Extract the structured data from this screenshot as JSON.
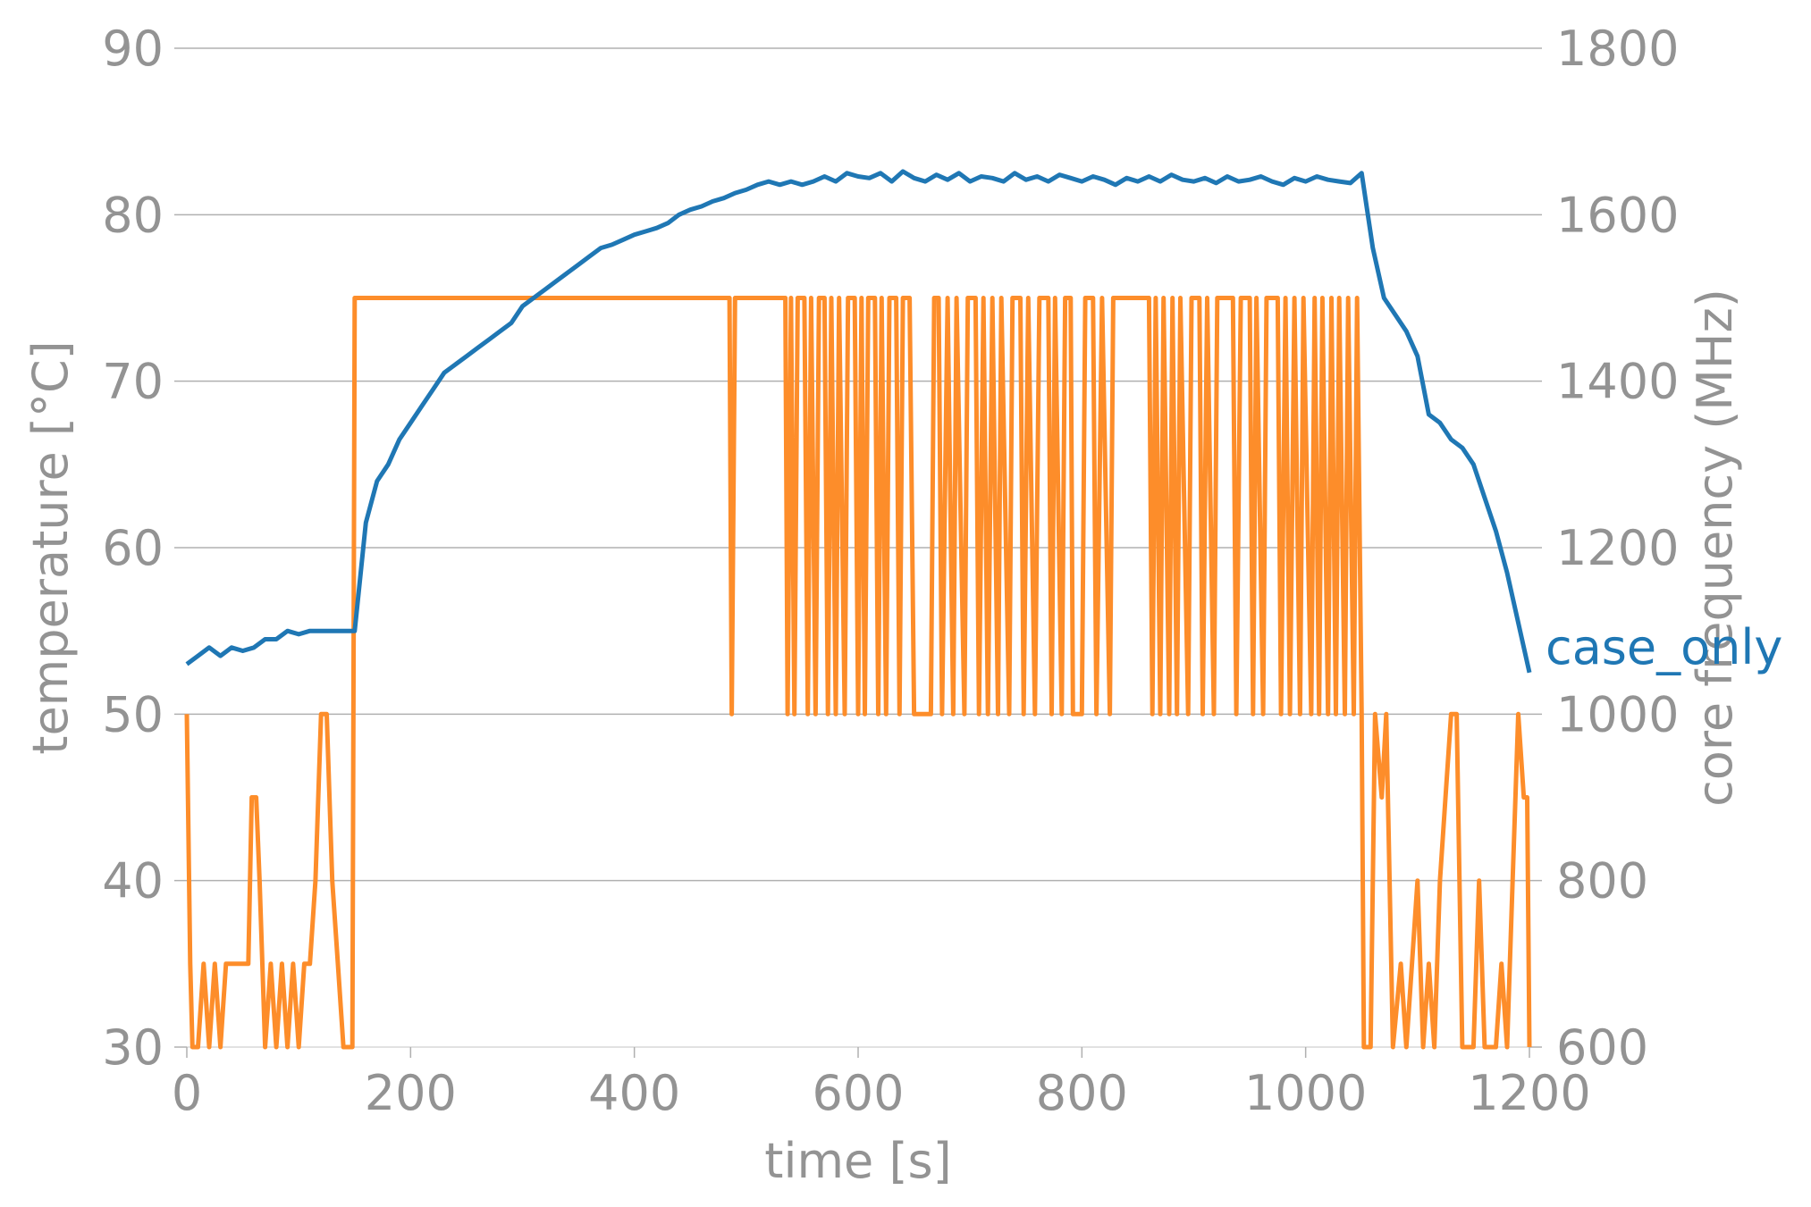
{
  "chart_data": {
    "type": "line",
    "xlabel": "time [s]",
    "ylabel": "temperature [°C]",
    "y2label": "core frequency (MHz)",
    "xlim": [
      0,
      1200
    ],
    "xticks": [
      0,
      200,
      400,
      600,
      800,
      1000,
      1200
    ],
    "ylim": [
      30,
      90
    ],
    "yticks": [
      30,
      40,
      50,
      60,
      70,
      80,
      90
    ],
    "y2lim": [
      600,
      1800
    ],
    "y2ticks": [
      600,
      800,
      1000,
      1200,
      1400,
      1600,
      1800
    ],
    "grid": true,
    "series": [
      {
        "name": "case_only",
        "color": "#1f77b4",
        "axis": "y",
        "x": [
          0,
          10,
          20,
          30,
          40,
          50,
          60,
          70,
          80,
          90,
          100,
          110,
          120,
          130,
          140,
          150,
          160,
          170,
          180,
          190,
          200,
          210,
          220,
          230,
          240,
          250,
          260,
          270,
          280,
          290,
          300,
          310,
          320,
          330,
          340,
          350,
          360,
          370,
          380,
          390,
          400,
          410,
          420,
          430,
          440,
          450,
          460,
          470,
          480,
          490,
          500,
          510,
          520,
          530,
          540,
          550,
          560,
          570,
          580,
          590,
          600,
          610,
          620,
          630,
          640,
          650,
          660,
          670,
          680,
          690,
          700,
          710,
          720,
          730,
          740,
          750,
          760,
          770,
          780,
          790,
          800,
          810,
          820,
          830,
          840,
          850,
          860,
          870,
          880,
          890,
          900,
          910,
          920,
          930,
          940,
          950,
          960,
          970,
          980,
          990,
          1000,
          1010,
          1020,
          1030,
          1040,
          1050,
          1060,
          1070,
          1080,
          1090,
          1100,
          1110,
          1120,
          1130,
          1140,
          1150,
          1160,
          1170,
          1180,
          1190,
          1200
        ],
        "values": [
          53,
          53.5,
          54,
          53.5,
          54,
          53.8,
          54,
          54.5,
          54.5,
          55,
          54.8,
          55,
          55,
          55,
          55,
          55,
          61.5,
          64,
          65,
          66.5,
          67.5,
          68.5,
          69.5,
          70.5,
          71,
          71.5,
          72,
          72.5,
          73,
          73.5,
          74.5,
          75,
          75.5,
          76,
          76.5,
          77,
          77.5,
          78,
          78.2,
          78.5,
          78.8,
          79,
          79.2,
          79.5,
          80,
          80.3,
          80.5,
          80.8,
          81,
          81.3,
          81.5,
          81.8,
          82,
          81.8,
          82,
          81.8,
          82,
          82.3,
          82,
          82.5,
          82.3,
          82.2,
          82.5,
          82,
          82.6,
          82.2,
          82,
          82.4,
          82.1,
          82.5,
          82,
          82.3,
          82.2,
          82,
          82.5,
          82.1,
          82.3,
          82,
          82.4,
          82.2,
          82,
          82.3,
          82.1,
          81.8,
          82.2,
          82,
          82.3,
          82,
          82.4,
          82.1,
          82,
          82.2,
          81.9,
          82.3,
          82,
          82.1,
          82.3,
          82,
          81.8,
          82.2,
          82,
          82.3,
          82.1,
          82,
          81.9,
          82.5,
          78,
          75,
          74,
          73,
          71.5,
          68,
          67.5,
          66.5,
          66,
          65,
          63,
          61,
          58.5,
          55.5,
          52.5
        ]
      },
      {
        "color": "#fd8d2a",
        "axis": "y2",
        "x": [
          0,
          3,
          5,
          10,
          15,
          20,
          25,
          30,
          35,
          40,
          50,
          55,
          58,
          62,
          65,
          70,
          75,
          80,
          85,
          90,
          95,
          100,
          105,
          110,
          115,
          120,
          125,
          130,
          135,
          140,
          148,
          150,
          485,
          487,
          490,
          535,
          537,
          540,
          543,
          546,
          552,
          555,
          558,
          562,
          565,
          570,
          573,
          576,
          580,
          583,
          588,
          591,
          597,
          600,
          603,
          606,
          609,
          615,
          618,
          621,
          625,
          628,
          634,
          637,
          640,
          646,
          650,
          665,
          668,
          672,
          675,
          680,
          685,
          688,
          695,
          698,
          705,
          708,
          712,
          716,
          720,
          725,
          728,
          735,
          738,
          745,
          748,
          752,
          758,
          762,
          770,
          773,
          776,
          782,
          785,
          790,
          792,
          800,
          803,
          810,
          813,
          818,
          825,
          828,
          860,
          863,
          866,
          870,
          873,
          878,
          881,
          885,
          888,
          895,
          898,
          905,
          908,
          912,
          918,
          921,
          935,
          938,
          942,
          950,
          953,
          956,
          962,
          965,
          975,
          978,
          982,
          986,
          990,
          995,
          998,
          1005,
          1008,
          1012,
          1015,
          1020,
          1023,
          1027,
          1030,
          1035,
          1038,
          1043,
          1046,
          1050,
          1052,
          1058,
          1062,
          1068,
          1072,
          1078,
          1085,
          1090,
          1095,
          1100,
          1105,
          1110,
          1115,
          1120,
          1125,
          1130,
          1135,
          1140,
          1150,
          1155,
          1160,
          1170,
          1175,
          1180,
          1185,
          1190,
          1195,
          1198,
          1200
        ],
        "values": [
          1000,
          700,
          600,
          600,
          700,
          600,
          700,
          600,
          700,
          700,
          700,
          700,
          900,
          900,
          800,
          600,
          700,
          600,
          700,
          600,
          700,
          600,
          700,
          700,
          800,
          1000,
          1000,
          800,
          700,
          600,
          600,
          1500,
          1500,
          1000,
          1500,
          1500,
          1000,
          1500,
          1000,
          1500,
          1500,
          1000,
          1500,
          1000,
          1500,
          1500,
          1000,
          1500,
          1000,
          1500,
          1000,
          1500,
          1500,
          1000,
          1500,
          1000,
          1500,
          1500,
          1000,
          1500,
          1000,
          1500,
          1500,
          1000,
          1500,
          1500,
          1000,
          1000,
          1500,
          1500,
          1000,
          1500,
          1000,
          1500,
          1000,
          1500,
          1500,
          1000,
          1500,
          1000,
          1500,
          1000,
          1500,
          1000,
          1500,
          1500,
          1000,
          1500,
          1000,
          1500,
          1500,
          1000,
          1500,
          1000,
          1500,
          1500,
          1000,
          1000,
          1500,
          1500,
          1000,
          1500,
          1000,
          1500,
          1500,
          1000,
          1500,
          1000,
          1500,
          1000,
          1500,
          1000,
          1500,
          1000,
          1500,
          1500,
          1000,
          1500,
          1000,
          1500,
          1500,
          1000,
          1500,
          1500,
          1000,
          1500,
          1000,
          1500,
          1500,
          1000,
          1500,
          1000,
          1500,
          1000,
          1500,
          1000,
          1500,
          1000,
          1500,
          1000,
          1500,
          1000,
          1500,
          1000,
          1500,
          1000,
          1500,
          1000,
          600,
          600,
          1000,
          900,
          1000,
          600,
          700,
          600,
          700,
          800,
          600,
          700,
          600,
          800,
          900,
          1000,
          1000,
          600,
          600,
          800,
          600,
          600,
          700,
          600,
          800,
          1000,
          900,
          900,
          600
        ]
      }
    ]
  }
}
